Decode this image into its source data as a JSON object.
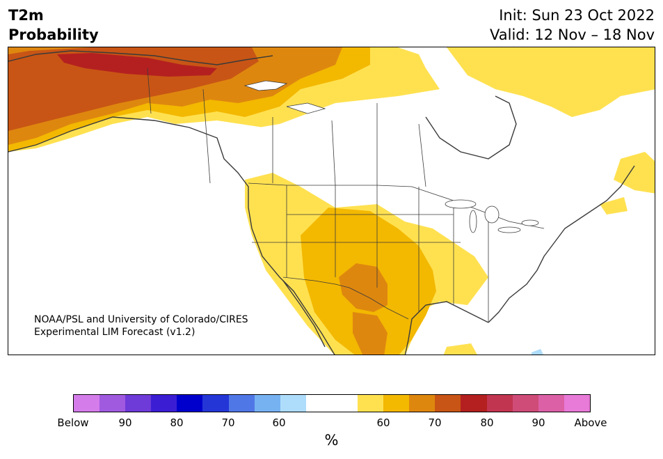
{
  "header": {
    "variable": "T2m",
    "product": "Probability",
    "init": "Init: Sun 23 Oct 2022",
    "valid": "Valid: 12 Nov – 18 Nov"
  },
  "credit": {
    "line1": "NOAA/PSL and University of Colorado/CIRES",
    "line2": "Experimental LIM Forecast (v1.2)"
  },
  "colorbar": {
    "colors": [
      "#d57ceb",
      "#a05ae0",
      "#6e3ad8",
      "#3b1ed4",
      "#0000cc",
      "#2436d6",
      "#5077e6",
      "#76b2f2",
      "#aedcfb",
      "#ffffff",
      "#ffffff",
      "#ffe150",
      "#f3b800",
      "#de870f",
      "#c85515",
      "#b42020",
      "#c23550",
      "#cf4c78",
      "#dc60a6",
      "#e87ad8"
    ],
    "labels": [
      "Below",
      "90",
      "80",
      "70",
      "60",
      "60",
      "70",
      "80",
      "90",
      "Above"
    ],
    "unit": "%"
  },
  "map": {
    "region": "North America",
    "zones": {
      "above_80": "#b42020",
      "above_75": "#c85515",
      "above_70": "#de870f",
      "above_65": "#f3b800",
      "above_60": "#ffe150",
      "below_60": "#aedcfb"
    }
  }
}
